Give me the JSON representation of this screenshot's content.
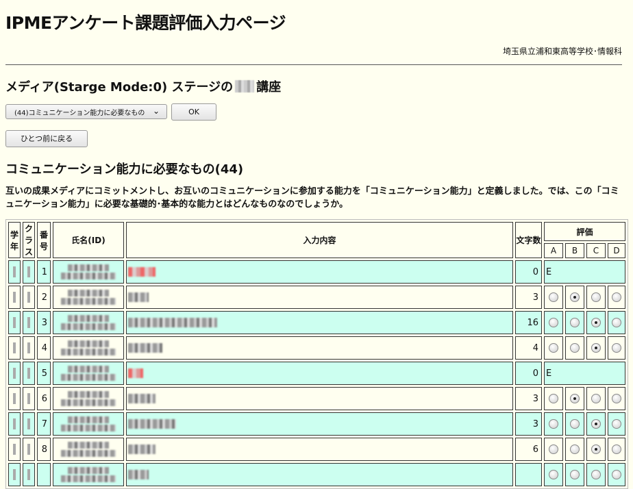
{
  "header": {
    "title": "IPMEアンケート課題評価入力ページ",
    "school": "埼玉県立浦和東高等学校･情報科"
  },
  "stage": {
    "title_prefix": "メディア(Starge Mode:0) ステージの",
    "title_suffix": "講座"
  },
  "controls": {
    "select_value": "(44)コミュニケーション能力に必要なもの",
    "ok_label": "OK",
    "back_label": "ひとつ前に戻る"
  },
  "topic": {
    "title": "コミュニケーション能力に必要なもの(44)",
    "description": "互いの成果メディアにコミットメントし、お互いのコミュニケーションに参加する能力を「コミュニケーション能力」と定義しました。では、この「コミュニケーション能力」に必要な基礎的･基本的な能力とはどんなものなのでしょうか。"
  },
  "table": {
    "headers": {
      "grade": "学年",
      "class": "クラス",
      "number": "番号",
      "name": "氏名(ID)",
      "content": "入力内容",
      "chars": "文字数",
      "eval": "評価",
      "grades": [
        "A",
        "B",
        "C",
        "D"
      ]
    },
    "rows": [
      {
        "number": "1",
        "chars": "0",
        "eval": "E",
        "selected": null,
        "highlight": true,
        "empty": true
      },
      {
        "number": "2",
        "chars": "3",
        "eval": "",
        "selected": "B",
        "highlight": false
      },
      {
        "number": "3",
        "chars": "16",
        "eval": "",
        "selected": "C",
        "highlight": true
      },
      {
        "number": "4",
        "chars": "4",
        "eval": "",
        "selected": "C",
        "highlight": false
      },
      {
        "number": "5",
        "chars": "0",
        "eval": "E",
        "selected": null,
        "highlight": true,
        "empty": true
      },
      {
        "number": "6",
        "chars": "3",
        "eval": "",
        "selected": "B",
        "highlight": false
      },
      {
        "number": "7",
        "chars": "3",
        "eval": "",
        "selected": "C",
        "highlight": true
      },
      {
        "number": "8",
        "chars": "6",
        "eval": "",
        "selected": "C",
        "highlight": false
      },
      {
        "number": "",
        "chars": "",
        "eval": "",
        "selected": null,
        "highlight": true
      }
    ]
  },
  "colors": {
    "background": "#fffff0",
    "row_highlight": "#ccfff0"
  }
}
